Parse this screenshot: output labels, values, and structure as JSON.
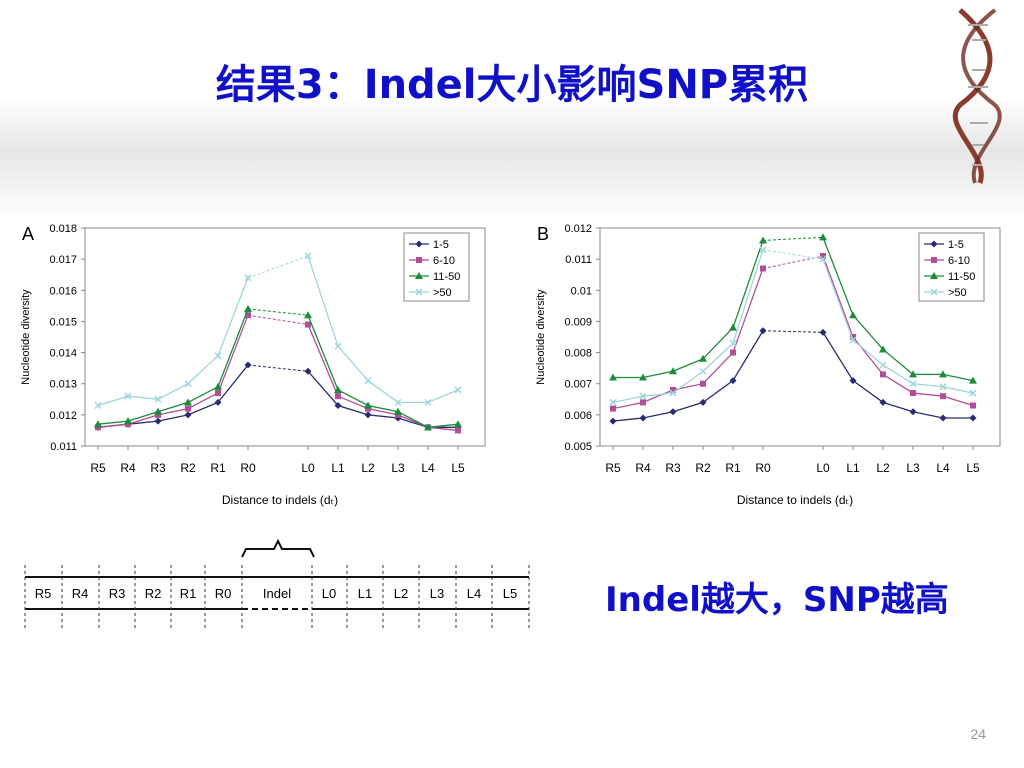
{
  "title": "结果3：Indel大小影响SNP累积",
  "conclusion": "Indel越大，SNP越高",
  "page_number": "24",
  "colors": {
    "title": "#1010c8",
    "s1": "#2a2a6e",
    "s2": "#b04f97",
    "s3": "#1a8c3a",
    "s4": "#9ed6dc"
  },
  "diagram": {
    "left_labels": [
      "R5",
      "R4",
      "R3",
      "R2",
      "R1",
      "R0"
    ],
    "indel": "Indel",
    "right_labels": [
      "L0",
      "L1",
      "L2",
      "L3",
      "L4",
      "L5"
    ]
  },
  "chart_data": [
    {
      "type": "line",
      "panel": "A",
      "ylabel": "Nucleotide diversity",
      "xlabel": "Distance to indels (dₜ)",
      "categories": [
        "R5",
        "R4",
        "R3",
        "R2",
        "R1",
        "R0",
        "L0",
        "L1",
        "L2",
        "L3",
        "L4",
        "L5"
      ],
      "ylim": [
        0.011,
        0.018
      ],
      "yticks": [
        "0.018",
        "0.017",
        "0.016",
        "0.015",
        "0.014",
        "0.013",
        "0.012",
        "0.011"
      ],
      "series": [
        {
          "name": "1-5",
          "values": [
            0.0116,
            0.0117,
            0.0118,
            0.012,
            0.0124,
            0.0136,
            0.0134,
            0.0123,
            0.012,
            0.0119,
            0.0116,
            0.0116
          ]
        },
        {
          "name": "6-10",
          "values": [
            0.0116,
            0.0117,
            0.012,
            0.0122,
            0.0127,
            0.0152,
            0.0149,
            0.0126,
            0.0122,
            0.012,
            0.0116,
            0.0115
          ]
        },
        {
          "name": "11-50",
          "values": [
            0.0117,
            0.0118,
            0.0121,
            0.0124,
            0.0129,
            0.0154,
            0.0152,
            0.0128,
            0.0123,
            0.0121,
            0.0116,
            0.0117
          ]
        },
        {
          "name": ">50",
          "values": [
            0.0123,
            0.0126,
            0.0125,
            0.013,
            0.0139,
            0.0164,
            0.0171,
            0.0142,
            0.0131,
            0.0124,
            0.0124,
            0.0128
          ]
        }
      ]
    },
    {
      "type": "line",
      "panel": "B",
      "ylabel": "Nucleotide diversity",
      "xlabel": "Distance to indels (dₜ)",
      "categories": [
        "R5",
        "R4",
        "R3",
        "R2",
        "R1",
        "R0",
        "L0",
        "L1",
        "L2",
        "L3",
        "L4",
        "L5"
      ],
      "ylim": [
        0.005,
        0.012
      ],
      "yticks": [
        "0.012",
        "0.011",
        "0.01",
        "0.009",
        "0.008",
        "0.007",
        "0.006",
        "0.005"
      ],
      "series": [
        {
          "name": "1-5",
          "values": [
            0.0058,
            0.0059,
            0.0061,
            0.0064,
            0.0071,
            0.0087,
            0.00865,
            0.0071,
            0.0064,
            0.0061,
            0.0059,
            0.0059
          ]
        },
        {
          "name": "6-10",
          "values": [
            0.0062,
            0.0064,
            0.0068,
            0.007,
            0.008,
            0.0107,
            0.0111,
            0.0085,
            0.0073,
            0.0067,
            0.0066,
            0.0063
          ]
        },
        {
          "name": "11-50",
          "values": [
            0.0072,
            0.0072,
            0.0074,
            0.0078,
            0.0088,
            0.0116,
            0.0117,
            0.0092,
            0.0081,
            0.0073,
            0.0073,
            0.0071
          ]
        },
        {
          "name": ">50",
          "values": [
            0.0064,
            0.0066,
            0.0067,
            0.0074,
            0.0083,
            0.0113,
            0.011,
            0.0084,
            0.0076,
            0.007,
            0.0069,
            0.0067
          ]
        }
      ]
    }
  ]
}
